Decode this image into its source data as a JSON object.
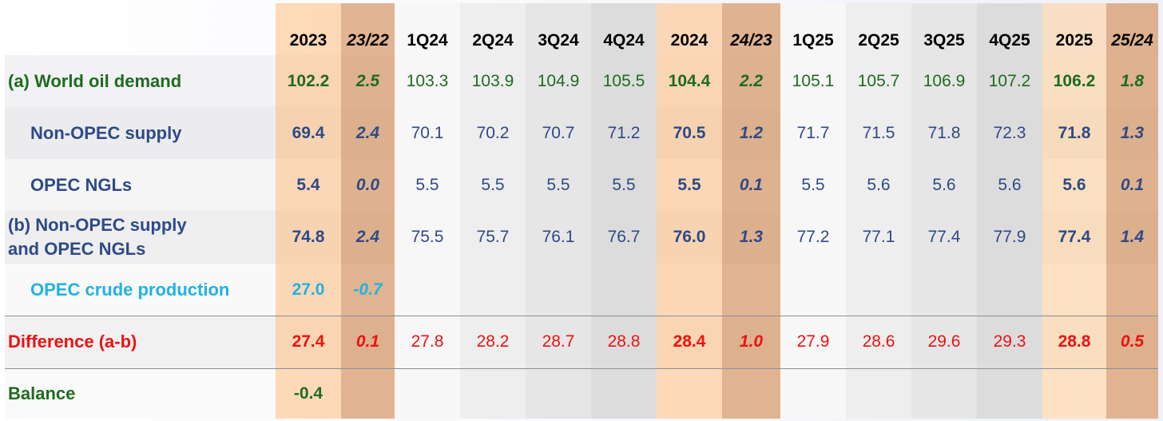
{
  "colors": {
    "green": "#1f6b1f",
    "navy": "#2e4a86",
    "cyan": "#22b1e3",
    "red": "#ee1111"
  },
  "chart_data": {
    "type": "table",
    "columns": [
      "2023",
      "23/22",
      "1Q24",
      "2Q24",
      "3Q24",
      "4Q24",
      "2024",
      "24/23",
      "1Q25",
      "2Q25",
      "3Q25",
      "4Q25",
      "2025",
      "25/24"
    ],
    "rows": [
      {
        "label": "(a) World oil demand",
        "values": [
          "102.2",
          "2.5",
          "103.3",
          "103.9",
          "104.9",
          "105.5",
          "104.4",
          "2.2",
          "105.1",
          "105.7",
          "106.9",
          "107.2",
          "106.2",
          "1.8"
        ]
      },
      {
        "label": "Non-OPEC  supply",
        "values": [
          "69.4",
          "2.4",
          "70.1",
          "70.2",
          "70.7",
          "71.2",
          "70.5",
          "1.2",
          "71.7",
          "71.5",
          "71.8",
          "72.3",
          "71.8",
          "1.3"
        ]
      },
      {
        "label": "OPEC NGLs",
        "values": [
          "5.4",
          "0.0",
          "5.5",
          "5.5",
          "5.5",
          "5.5",
          "5.5",
          "0.1",
          "5.5",
          "5.6",
          "5.6",
          "5.6",
          "5.6",
          "0.1"
        ]
      },
      {
        "label_line1": "(b) Non-OPEC supply",
        "label_line2": "and OPEC NGLs",
        "values": [
          "74.8",
          "2.4",
          "75.5",
          "75.7",
          "76.1",
          "76.7",
          "76.0",
          "1.3",
          "77.2",
          "77.1",
          "77.4",
          "77.9",
          "77.4",
          "1.4"
        ]
      },
      {
        "label": "OPEC crude production",
        "values": [
          "27.0",
          "-0.7",
          "",
          "",
          "",
          "",
          "",
          "",
          "",
          "",
          "",
          "",
          "",
          ""
        ]
      },
      {
        "label": "Difference (a-b)",
        "values": [
          "27.4",
          "0.1",
          "27.8",
          "28.2",
          "28.7",
          "28.8",
          "28.4",
          "1.0",
          "27.9",
          "28.6",
          "29.6",
          "29.3",
          "28.8",
          "0.5"
        ]
      },
      {
        "label": "Balance",
        "values": [
          "-0.4",
          "",
          "",
          "",
          "",
          "",
          "",
          "",
          "",
          "",
          "",
          "",
          "",
          ""
        ]
      }
    ]
  }
}
